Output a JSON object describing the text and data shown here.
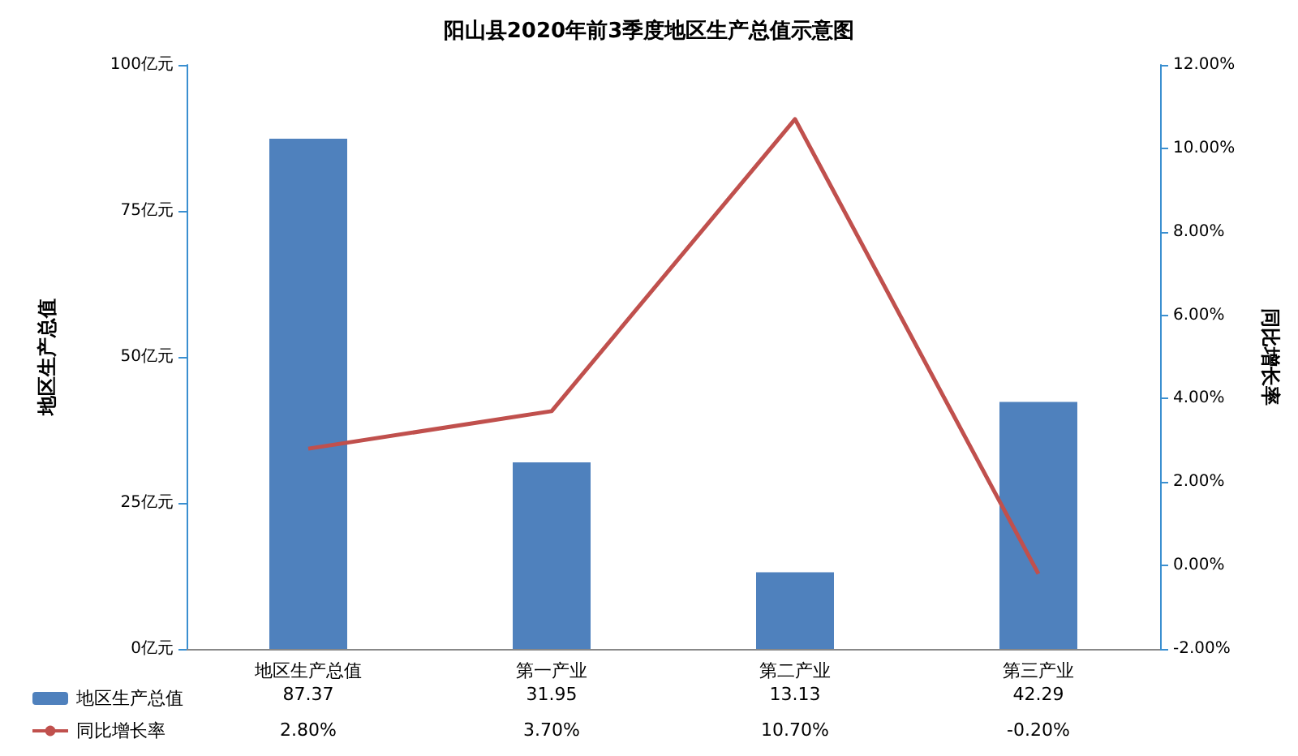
{
  "chart_data": {
    "type": "bar",
    "title": "阳山县2020年前3季度地区生产总值示意图",
    "ylabel": "地区生产总值",
    "y2label": "同比增长率",
    "categories": [
      "地区生产总值",
      "第一产业",
      "第二产业",
      "第三产业"
    ],
    "series": [
      {
        "name": "地区生产总值",
        "color": "#4f81bd",
        "values": [
          87.37,
          31.95,
          13.13,
          42.29
        ],
        "value_labels": [
          "87.37",
          "31.95",
          "13.13",
          "42.29"
        ]
      },
      {
        "name": "同比增长率",
        "type": "line",
        "axis": "y2",
        "color": "#c0504d",
        "values": [
          2.8,
          3.7,
          10.7,
          -0.2
        ],
        "value_labels": [
          "2.80%",
          "3.70%",
          "10.70%",
          "-0.20%"
        ]
      }
    ],
    "ylim": [
      0,
      100
    ],
    "yticks": [
      {
        "value": 0,
        "label": "0亿元"
      },
      {
        "value": 25,
        "label": "25亿元"
      },
      {
        "value": 50,
        "label": "50亿元"
      },
      {
        "value": 75,
        "label": "75亿元"
      },
      {
        "value": 100,
        "label": "100亿元"
      }
    ],
    "y2lim": [
      -2,
      12
    ],
    "y2ticks": [
      {
        "value": -2,
        "label": "-2.00%"
      },
      {
        "value": 0,
        "label": "0.00%"
      },
      {
        "value": 2,
        "label": "2.00%"
      },
      {
        "value": 4,
        "label": "4.00%"
      },
      {
        "value": 6,
        "label": "6.00%"
      },
      {
        "value": 8,
        "label": "8.00%"
      },
      {
        "value": 10,
        "label": "10.00%"
      },
      {
        "value": 12,
        "label": "12.00%"
      }
    ],
    "grid": false,
    "legend": "bottom left",
    "marker": "none",
    "line_style": "solid"
  }
}
